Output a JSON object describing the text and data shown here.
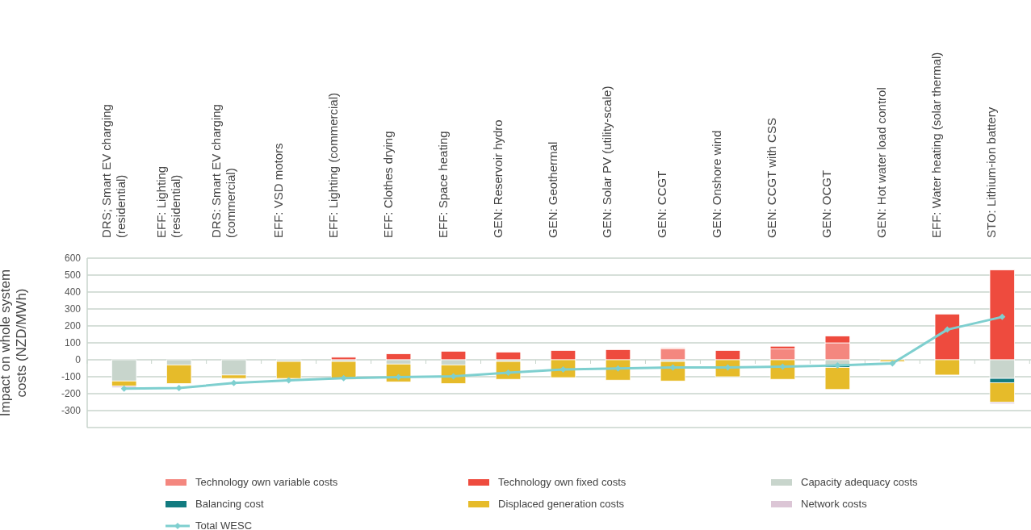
{
  "chart_data": {
    "type": "bar",
    "stacked": true,
    "ylabel": "Impact on whole system costs (NZD/MWh)",
    "categories": [
      "DRS; Smart EV charging\n(residential)",
      "EFF: Lighting\n(residential)",
      "DRS: Smart EV charging\n(commercial)",
      "EFF: VSD motors",
      "EFF: Lighting (commercial)",
      "EFF: Clothes drying",
      "EFF: Space heating",
      "GEN: Reservoir hydro",
      "GEN: Geothermal",
      "GEN: Solar PV (utility-scale)",
      "GEN: CCGT",
      "GEN: Onshore wind",
      "GEN: CCGT with CSS",
      "GEN: OCGT",
      "GEN: Hot water load control",
      "EFF: Water heating (solar thermal)",
      "STO: Lithium-ion battery"
    ],
    "series": [
      {
        "name": "Technology own variable costs",
        "color": "#f4877f",
        "values": [
          0,
          0,
          0,
          0,
          0,
          0,
          0,
          0,
          0,
          0,
          65,
          0,
          65,
          100,
          0,
          0,
          0
        ]
      },
      {
        "name": "Technology own fixed costs",
        "color": "#ee4b3e",
        "values": [
          0,
          0,
          0,
          0,
          15,
          35,
          50,
          45,
          55,
          60,
          5,
          55,
          15,
          40,
          0,
          270,
          530
        ]
      },
      {
        "name": "Capacity adequacy costs",
        "color": "#c8d5cc",
        "values": [
          -125,
          -30,
          -90,
          -10,
          -10,
          -25,
          -30,
          -10,
          0,
          0,
          -10,
          0,
          0,
          -35,
          0,
          0,
          -110
        ]
      },
      {
        "name": "Balancing cost",
        "color": "#127b80",
        "values": [
          0,
          0,
          0,
          0,
          0,
          0,
          0,
          0,
          0,
          0,
          0,
          0,
          0,
          -10,
          0,
          0,
          -25
        ]
      },
      {
        "name": "Displaced generation costs",
        "color": "#e6bb2a",
        "values": [
          -30,
          -110,
          -20,
          -100,
          -105,
          -105,
          -110,
          -105,
          -105,
          -120,
          -115,
          -100,
          -115,
          -130,
          -10,
          -90,
          -115
        ]
      },
      {
        "name": "Network costs",
        "color": "#dcc6d6",
        "values": [
          -10,
          0,
          0,
          0,
          0,
          0,
          0,
          0,
          0,
          0,
          0,
          0,
          0,
          0,
          0,
          0,
          -10
        ]
      },
      {
        "name": "Total WESC",
        "type": "line",
        "color": "#7ecfcf",
        "marker": "diamond",
        "values": [
          -170,
          -167,
          -137,
          -122,
          -108,
          -102,
          -98,
          -76,
          -57,
          -51,
          -45,
          -45,
          -41,
          -33,
          -21,
          178,
          253
        ]
      }
    ],
    "ylim": [
      -400,
      600
    ],
    "yticks": [
      600,
      500,
      400,
      300,
      200,
      100,
      0,
      -100,
      -200,
      -300,
      {
        "value": -400,
        "label": null
      }
    ],
    "grid": "y",
    "legend": "bottom"
  }
}
